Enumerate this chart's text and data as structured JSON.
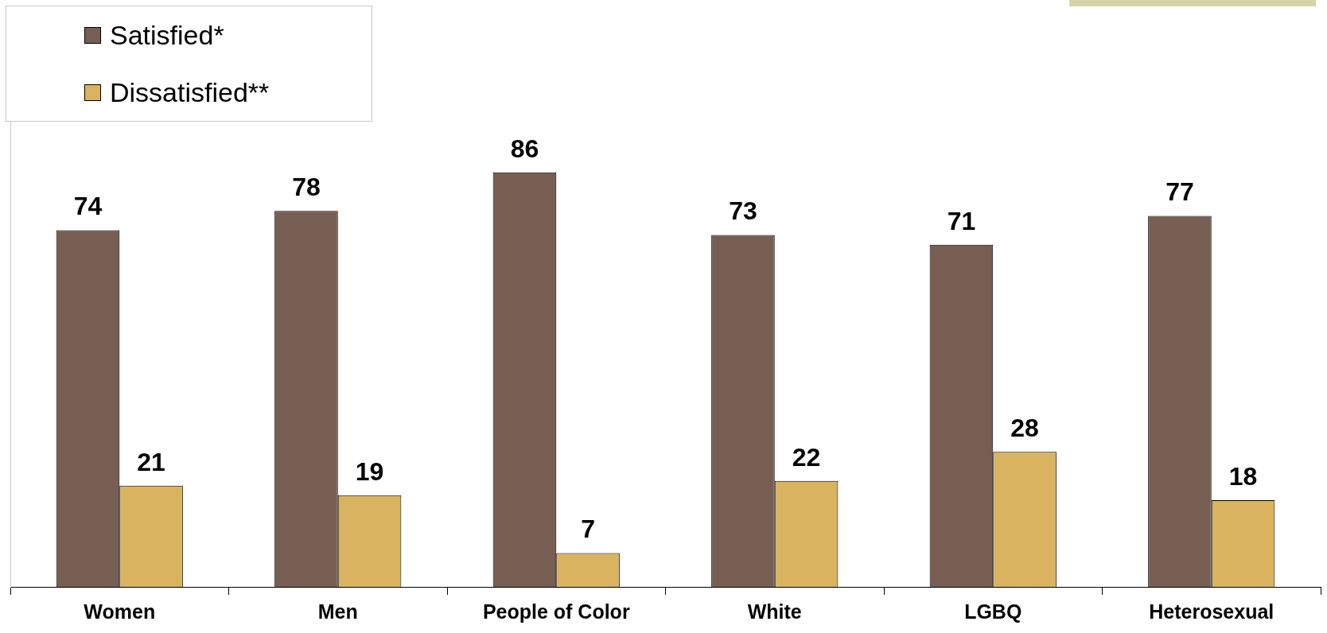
{
  "chart_data": {
    "type": "bar",
    "categories": [
      "Women",
      "Men",
      "People of Color",
      "White",
      "LGBQ",
      "Heterosexual"
    ],
    "series": [
      {
        "name": "Satisfied*",
        "color": "#775e53",
        "values": [
          74,
          78,
          86,
          73,
          71,
          77
        ]
      },
      {
        "name": "Dissatisfied**",
        "color": "#d9b360",
        "values": [
          21,
          19,
          7,
          22,
          28,
          18
        ]
      }
    ],
    "data_labels": true,
    "legend": "top left",
    "tick_labels": "x"
  }
}
